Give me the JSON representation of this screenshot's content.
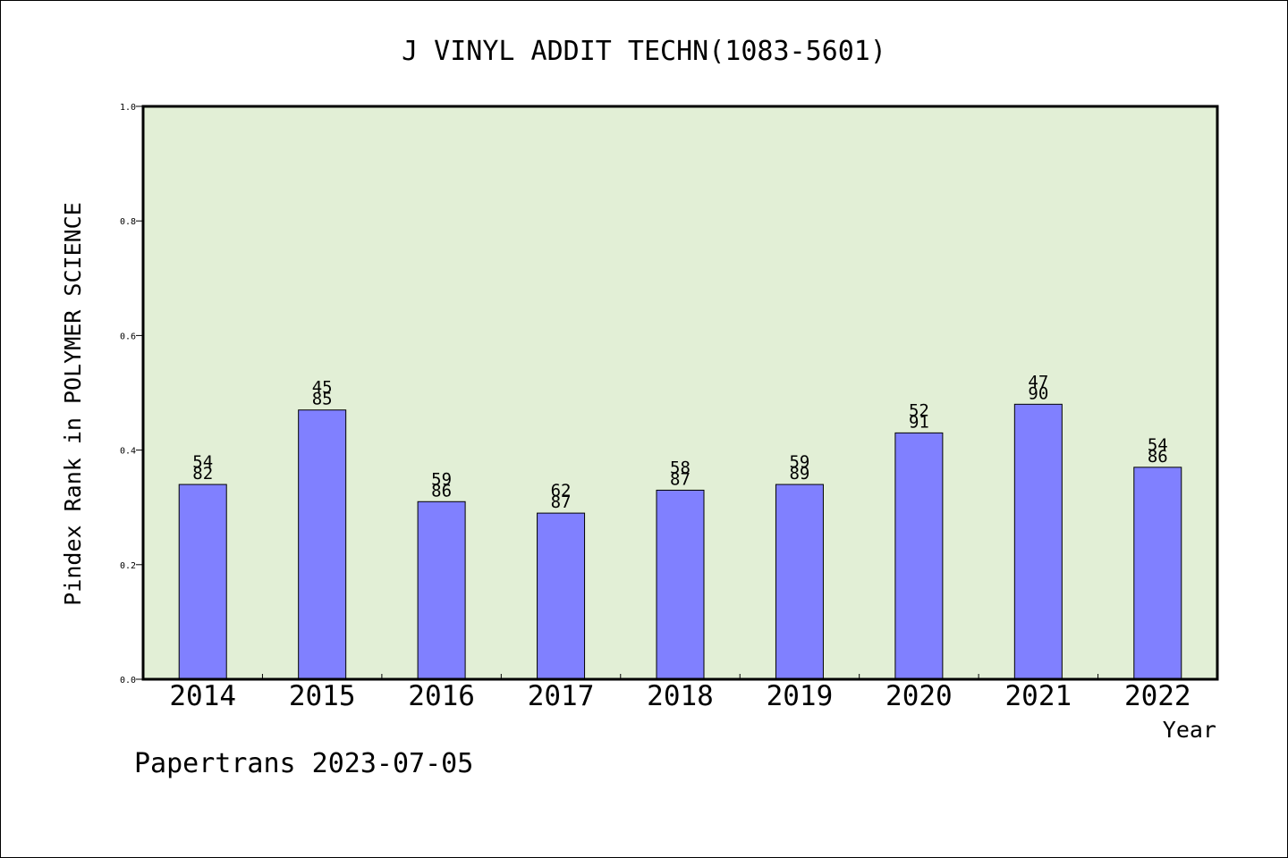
{
  "chart_data": {
    "type": "bar",
    "title": "J VINYL ADDIT TECHN(1083-5601)",
    "xlabel": "Year",
    "ylabel": "Pindex Rank in POLYMER SCIENCE",
    "categories": [
      "2014",
      "2015",
      "2016",
      "2017",
      "2018",
      "2019",
      "2020",
      "2021",
      "2022"
    ],
    "values": [
      0.34,
      0.47,
      0.31,
      0.29,
      0.33,
      0.34,
      0.43,
      0.48,
      0.37
    ],
    "rank_labels": [
      [
        "54",
        "82"
      ],
      [
        "45",
        "85"
      ],
      [
        "59",
        "86"
      ],
      [
        "62",
        "87"
      ],
      [
        "58",
        "87"
      ],
      [
        "59",
        "89"
      ],
      [
        "52",
        "91"
      ],
      [
        "47",
        "90"
      ],
      [
        "54",
        "86"
      ]
    ],
    "ylim": [
      0.0,
      1.0
    ],
    "yticks": [
      "0.0",
      "0.2",
      "0.4",
      "0.6",
      "0.8",
      "1.0"
    ],
    "grid": false,
    "colors": {
      "plot_background": "#e2efd6",
      "bar_fill": "#8080ff",
      "bar_stroke": "#000000"
    }
  },
  "footer": {
    "watermark": "Papertrans 2023-07-05"
  }
}
